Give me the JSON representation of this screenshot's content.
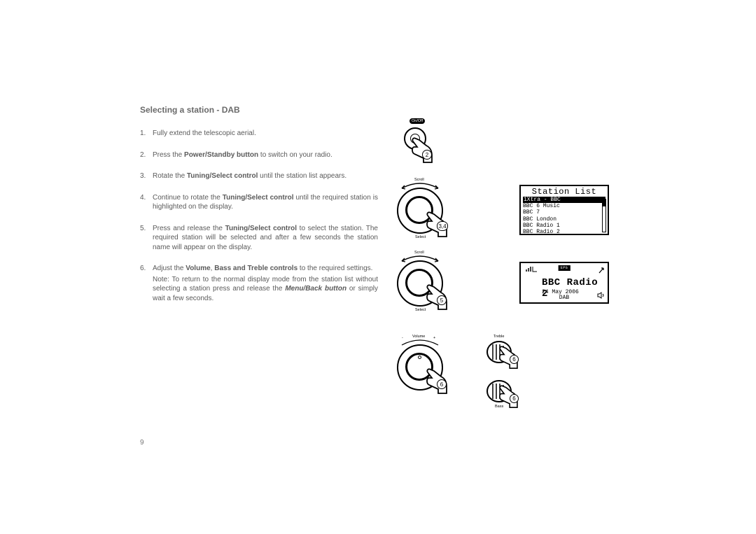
{
  "heading": "Selecting a station - DAB",
  "page_number": "9",
  "steps": [
    {
      "n": "1.",
      "text": "Fully extend the telescopic aerial."
    },
    {
      "n": "2.",
      "pre": "Press the ",
      "bold": "Power/Standby button",
      "post": " to switch on your radio."
    },
    {
      "n": "3.",
      "pre": "Rotate the ",
      "bold": "Tuning/Select control",
      "post": " until the station list appears."
    },
    {
      "n": "4.",
      "pre": "Continue to rotate the ",
      "bold": "Tuning/Select control",
      "post": " until the required station is highlighted on the display."
    },
    {
      "n": "5.",
      "pre": "Press and release the ",
      "bold": "Tuning/Select control",
      "post": " to select the station. The required station will be selected and after a few seconds the station name will appear on the display."
    },
    {
      "n": "6.",
      "pre": "Adjust the ",
      "bold": "Volume",
      "mid": ", ",
      "bold2": "Bass and Treble controls",
      "post": " to the required settings.",
      "note_pre": "Note: To return to the normal display mode from the station list without selecting a station press and release the ",
      "note_bold": "Menu/Back button",
      "note_post": " or simply wait a few seconds."
    }
  ],
  "labels": {
    "onoff": "On/Off",
    "scroll": "Scroll",
    "select": "Select",
    "volume": "Volume",
    "treble": "Treble",
    "bass": "Bass",
    "minus": "-",
    "plus": "+"
  },
  "bubbles": {
    "b2": "2",
    "b34": "3,4",
    "b5": "5",
    "b6a": "6",
    "b6b": "6",
    "b6c": "6"
  },
  "lcd1": {
    "title": "Station List",
    "items": [
      "1Xtra - BBC",
      "BBC 6 Music",
      "BBC 7",
      "BBC London",
      "BBC Radio 1",
      "BBC Radio 2"
    ],
    "selected": 0
  },
  "lcd2": {
    "epg": "EPG",
    "station": "BBC Radio 2",
    "date": "24 May 2006",
    "mode": "DAB"
  }
}
